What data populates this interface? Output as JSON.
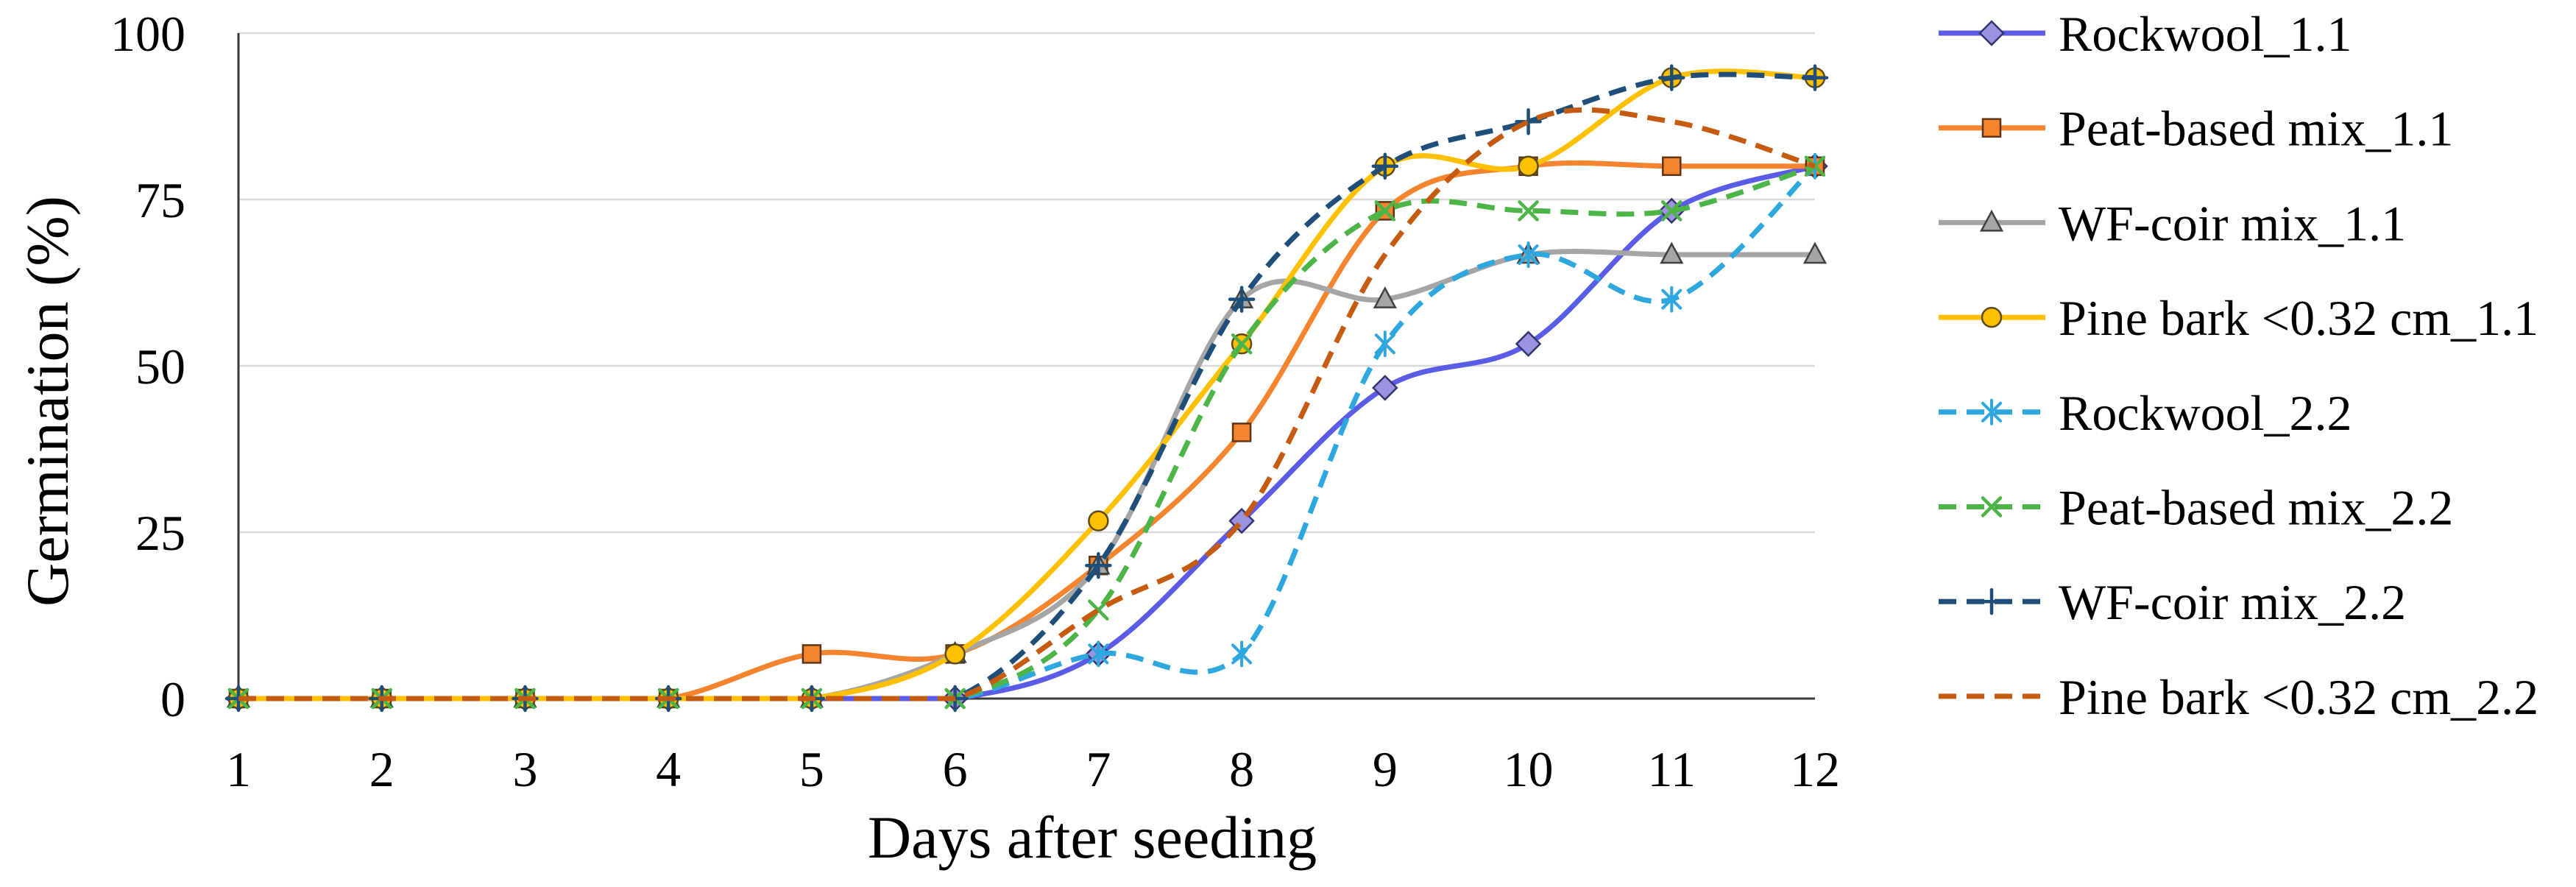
{
  "chart_data": {
    "type": "line",
    "smoothed": true,
    "xlabel": "Days after seeding",
    "ylabel": "Germination (%)",
    "x": [
      1,
      2,
      3,
      4,
      5,
      6,
      7,
      8,
      9,
      10,
      11,
      12
    ],
    "xlim": [
      1,
      12
    ],
    "ylim": [
      0,
      100
    ],
    "yticks": [
      0,
      25,
      50,
      75,
      100
    ],
    "grid": true,
    "legend_position": "right",
    "series": [
      {
        "name": "Rockwool_1.1",
        "color": "#5B5BE6",
        "line_style": "solid",
        "marker": "diamond",
        "marker_fill": "#9C92E2",
        "marker_edge": "#33336E",
        "values": [
          0,
          0,
          0,
          0,
          0,
          0,
          6.7,
          26.7,
          46.7,
          53.3,
          73.3,
          80
        ]
      },
      {
        "name": "Peat-based mix_1.1",
        "color": "#F5842E",
        "line_style": "solid",
        "marker": "square",
        "marker_fill": "#F5842E",
        "marker_edge": "#5E3414",
        "values": [
          0,
          0,
          0,
          0,
          6.7,
          6.7,
          20,
          40,
          73.3,
          80,
          80,
          80
        ]
      },
      {
        "name": "WF-coir mix_1.1",
        "color": "#A5A5A5",
        "line_style": "solid",
        "marker": "triangle",
        "marker_fill": "#A5A5A5",
        "marker_edge": "#404040",
        "values": [
          0,
          0,
          0,
          0,
          0,
          6.7,
          20,
          60,
          60,
          66.7,
          66.7,
          66.7
        ]
      },
      {
        "name": "Pine bark <0.32 cm_1.1",
        "color": "#FFC000",
        "line_style": "solid",
        "marker": "circle",
        "marker_fill": "#FFC000",
        "marker_edge": "#5A4A1A",
        "values": [
          0,
          0,
          0,
          0,
          0,
          6.7,
          26.7,
          53.3,
          80,
          80,
          93.3,
          93.3
        ]
      },
      {
        "name": "Rockwool_2.2",
        "color": "#2EA6DE",
        "line_style": "dashed",
        "marker": "asterisk",
        "marker_fill": "#2EA6DE",
        "marker_edge": "#2EA6DE",
        "values": [
          0,
          0,
          0,
          0,
          0,
          0,
          6.7,
          6.7,
          53.3,
          66.7,
          60,
          80
        ]
      },
      {
        "name": "Peat-based mix_2.2",
        "color": "#4DB548",
        "line_style": "dashed",
        "marker": "x",
        "marker_fill": "#4DB548",
        "marker_edge": "#4DB548",
        "values": [
          0,
          0,
          0,
          0,
          0,
          0,
          13.3,
          53.3,
          73.3,
          73.3,
          73.3,
          80
        ]
      },
      {
        "name": "WF-coir mix_2.2",
        "color": "#1F4E79",
        "line_style": "dashed",
        "marker": "plus",
        "marker_fill": "#1F4E79",
        "marker_edge": "#1F4E79",
        "values": [
          0,
          0,
          0,
          0,
          0,
          0,
          20,
          60,
          80,
          86.7,
          93.3,
          93.3
        ]
      },
      {
        "name": "Pine bark <0.32 cm_2.2",
        "color": "#C55A11",
        "line_style": "dashed",
        "marker": "none",
        "marker_fill": "#C55A11",
        "marker_edge": "#C55A11",
        "values": [
          0,
          0,
          0,
          0,
          0,
          0,
          13.3,
          26.7,
          66.7,
          86.7,
          86.7,
          80
        ]
      }
    ]
  }
}
